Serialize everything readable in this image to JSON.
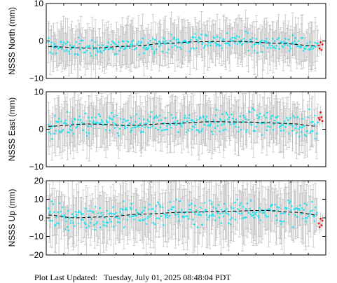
{
  "footer": {
    "label": "Plot Last Updated:",
    "timestamp": "Tuesday, July 01, 2025 08:48:04 PDT"
  },
  "colors": {
    "points": "#22e2f0",
    "recent_points": "#ee1111",
    "error_bars": "#bdbdbd",
    "trend_line": "#000000",
    "frame": "#000000"
  },
  "chart_data": [
    {
      "type": "scatter",
      "name": "north",
      "ylabel": "NSSS North (mm)",
      "ylim": [
        -10,
        10
      ],
      "yticks": [
        "10",
        "0",
        "−10"
      ],
      "ytick_values": [
        10,
        0,
        -10
      ],
      "grid": false,
      "trend": [
        [
          0,
          -1.5
        ],
        [
          0.15,
          -1.9
        ],
        [
          0.3,
          -1.4
        ],
        [
          0.45,
          -0.6
        ],
        [
          0.55,
          -0.2
        ],
        [
          0.7,
          -0.1
        ],
        [
          0.85,
          -0.6
        ],
        [
          1.0,
          -1.3
        ]
      ],
      "scatter_band": 3.0,
      "error_bar_half_range": [
        2.5,
        7.0
      ],
      "recent": [
        -1.2,
        -2.0,
        -0.3,
        -2.4,
        -0.9
      ]
    },
    {
      "type": "scatter",
      "name": "east",
      "ylabel": "NSSS East (mm)",
      "ylim": [
        -10,
        10
      ],
      "yticks": [
        "10",
        "0",
        "−10"
      ],
      "ytick_values": [
        10,
        0,
        -10
      ],
      "grid": false,
      "trend": [
        [
          0,
          0.8
        ],
        [
          0.15,
          1.4
        ],
        [
          0.3,
          1.0
        ],
        [
          0.45,
          1.5
        ],
        [
          0.6,
          2.0
        ],
        [
          0.75,
          1.9
        ],
        [
          0.9,
          1.5
        ],
        [
          1.0,
          0.8
        ]
      ],
      "scatter_band": 4.0,
      "error_bar_half_range": [
        3.0,
        7.5
      ],
      "recent": [
        3.0,
        2.5,
        4.5,
        3.2,
        2.2
      ]
    },
    {
      "type": "scatter",
      "name": "up",
      "ylabel": "NSSS Up (mm)",
      "ylim": [
        -20,
        20
      ],
      "yticks": [
        "20",
        "10",
        "0",
        "−10",
        "−20"
      ],
      "ytick_values": [
        20,
        10,
        0,
        -10,
        -20
      ],
      "grid": false,
      "trend": [
        [
          0,
          1.5
        ],
        [
          0.1,
          0.0
        ],
        [
          0.2,
          0.5
        ],
        [
          0.35,
          2.0
        ],
        [
          0.5,
          3.0
        ],
        [
          0.65,
          3.5
        ],
        [
          0.8,
          4.0
        ],
        [
          0.92,
          3.0
        ],
        [
          1.0,
          1.5
        ]
      ],
      "scatter_band": 9.0,
      "error_bar_half_range": [
        6.0,
        18.0
      ],
      "recent": [
        -3.0,
        -5.0,
        -0.5,
        -4.0,
        -1.5
      ]
    }
  ]
}
